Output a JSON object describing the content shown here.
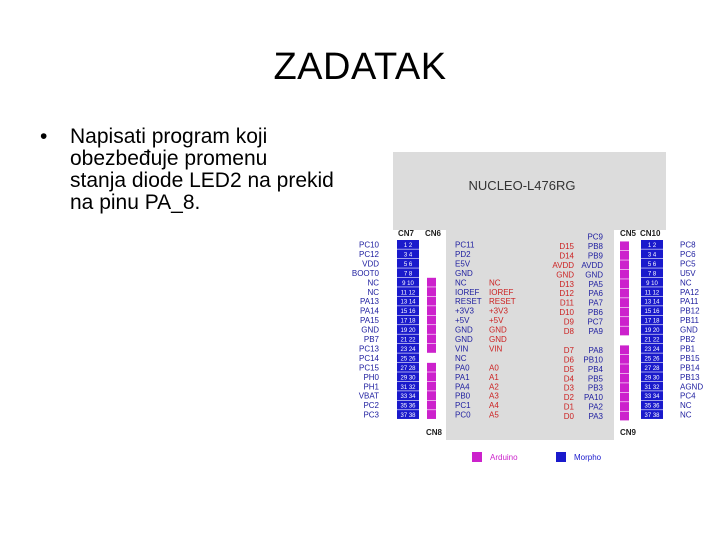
{
  "slide": {
    "title": "ZADATAK",
    "bullet_lines": [
      "Napisati program koji",
      "obezbeđuje promenu",
      "stanja diode LED2 na prekid",
      "na pinu PA_8."
    ]
  },
  "diagram": {
    "board_name": "NUCLEO-L476RG",
    "headers": {
      "cn7": "CN7",
      "cn6": "CN6",
      "cn8": "CN8",
      "cn5": "CN5",
      "cn10": "CN10",
      "cn9": "CN9"
    },
    "legend": {
      "arduino": "Arduino",
      "morpho": "Morpho"
    },
    "colors": {
      "board": "#dcdcdc",
      "morpho": "#1a1acc",
      "arduino": "#cc22cc",
      "left_text": "#2020a0",
      "right_text": "#cc2222",
      "pin_num": "#ffffff"
    },
    "cn7_labels": [
      "PC10",
      "PC12",
      "VDD",
      "BOOT0",
      "NC",
      "NC",
      "PA13",
      "PA14",
      "PA15",
      "GND",
      "PB7",
      "PC13",
      "PC14",
      "PC15",
      "PH0",
      "PH1",
      "VBAT",
      "PC2",
      "PC3"
    ],
    "cn7_right": [
      "PC11",
      "PD2",
      "E5V",
      "GND",
      "NC",
      "IOREF",
      "RESET",
      "+3V3",
      "+5V",
      "GND",
      "GND",
      "VIN",
      "NC",
      "PA0",
      "PA1",
      "PA4",
      "PB0",
      "PC1",
      "PC0"
    ],
    "cn6_cn8_labels": [
      "",
      "",
      "",
      "",
      "NC",
      "IOREF",
      "RESET",
      "+3V3",
      "+5V",
      "GND",
      "GND",
      "VIN",
      "",
      "A0",
      "A1",
      "A2",
      "A3",
      "A4",
      "A5"
    ],
    "cn5_cn9_labels": [
      "",
      "D15",
      "D14",
      "AVDD",
      "GND",
      "D13",
      "D12",
      "D11",
      "D10",
      "D9",
      "D8",
      "",
      "D7",
      "D6",
      "D5",
      "D4",
      "D3",
      "D2",
      "D1",
      "D0"
    ],
    "cn10_left": [
      "PC9",
      "PB8",
      "PB9",
      "AVDD",
      "GND",
      "PA5",
      "PA6",
      "PA7",
      "PB6",
      "PC7",
      "PA9",
      "",
      "PA8",
      "PB10",
      "PB4",
      "PB5",
      "PB3",
      "PA10",
      "PA2",
      "PA3"
    ],
    "cn10_labels": [
      "PC8",
      "PC6",
      "PC5",
      "U5V",
      "NC",
      "PA12",
      "PA11",
      "PB12",
      "PB11",
      "GND",
      "PB2",
      "PB1",
      "PB15",
      "PB14",
      "PB13",
      "AGND",
      "PC4",
      "NC",
      "NC"
    ],
    "cn7_pin_numbers": [
      "1 2",
      "3 4",
      "5 6",
      "7 8",
      "9 10",
      "11 12",
      "13 14",
      "15 16",
      "17 18",
      "19 20",
      "21 22",
      "23 24",
      "25 26",
      "27 28",
      "29 30",
      "31 32",
      "33 34",
      "35 36",
      "37 38"
    ]
  }
}
